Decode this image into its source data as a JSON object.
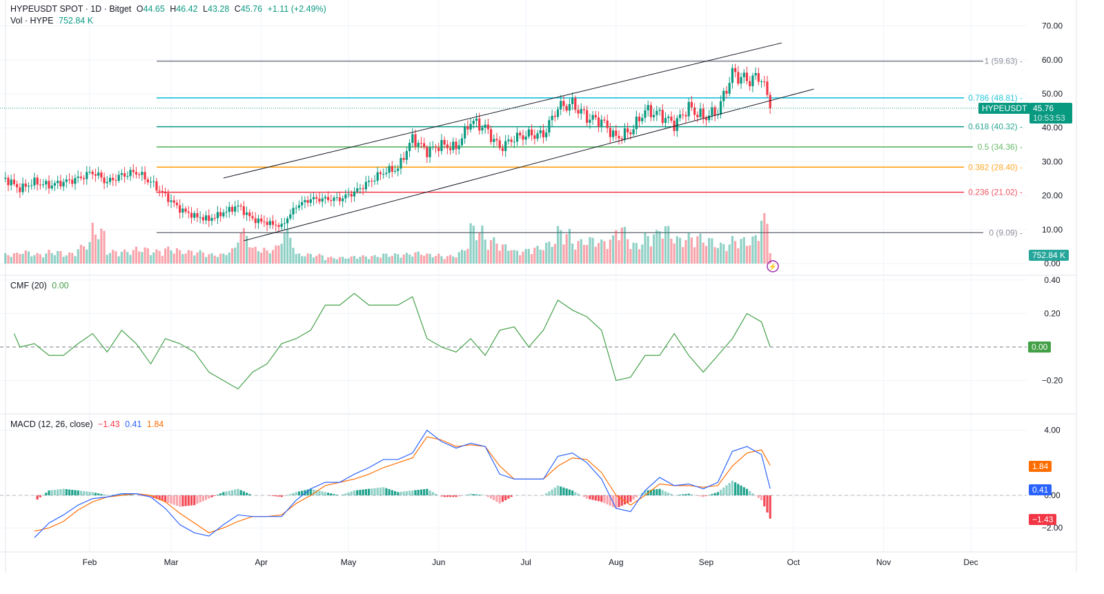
{
  "header": {
    "symbol": "HYPEUSDT SPOT · 1D · Bitget",
    "open_label": "O",
    "open": "44.65",
    "high_label": "H",
    "high": "46.42",
    "low_label": "L",
    "low": "43.28",
    "close_label": "C",
    "close": "45.76",
    "change": "+1.11 (+2.49%)",
    "vol_label": "Vol · HYPE",
    "vol": "752.84 K"
  },
  "price_tag": {
    "symbol": "HYPEUSDT",
    "price": "45.76",
    "countdown": "10:53:53"
  },
  "volume_tag": "752.84 K",
  "cmf": {
    "label": "CMF (20)",
    "value": "0.00"
  },
  "macd": {
    "label": "MACD (12, 26, close)",
    "hist": "−1.43",
    "macd": "0.41",
    "signal": "1.84"
  },
  "colors": {
    "up": "#089981",
    "down": "#f23645",
    "macd": "#2962ff",
    "signal": "#ff6d00",
    "cmf": "#43a047"
  },
  "chart_data": [
    {
      "type": "candlestick",
      "price_axis": {
        "ticks": [
          "70.00",
          "60.00",
          "50.00",
          "40.00",
          "30.00",
          "20.00",
          "10.00",
          "0.00"
        ],
        "range": [
          0,
          70
        ]
      },
      "x_ticks": [
        "Feb",
        "Mar",
        "Apr",
        "May",
        "Jun",
        "Jul",
        "Aug",
        "Sep",
        "Oct",
        "Nov",
        "Dec"
      ],
      "closes": [
        [
          "Jan 3",
          25
        ],
        [
          "Jan 8",
          22
        ],
        [
          "Jan 13",
          24
        ],
        [
          "Jan 18",
          23
        ],
        [
          "Jan 23",
          24
        ],
        [
          "Jan 28",
          25
        ],
        [
          "Feb 2",
          27
        ],
        [
          "Feb 7",
          24
        ],
        [
          "Feb 12",
          26
        ],
        [
          "Feb 17",
          27
        ],
        [
          "Feb 22",
          24
        ],
        [
          "Feb 27",
          20
        ],
        [
          "Mar 4",
          16
        ],
        [
          "Mar 9",
          14
        ],
        [
          "Mar 14",
          13
        ],
        [
          "Mar 19",
          15
        ],
        [
          "Mar 24",
          17
        ],
        [
          "Mar 29",
          13
        ],
        [
          "Apr 3",
          12
        ],
        [
          "Apr 8",
          11
        ],
        [
          "Apr 13",
          17
        ],
        [
          "Apr 18",
          19
        ],
        [
          "Apr 23",
          19
        ],
        [
          "Apr 28",
          19
        ],
        [
          "May 3",
          21
        ],
        [
          "May 8",
          24
        ],
        [
          "May 13",
          27
        ],
        [
          "May 18",
          28
        ],
        [
          "May 23",
          37
        ],
        [
          "May 28",
          33
        ],
        [
          "Jun 2",
          35
        ],
        [
          "Jun 7",
          34
        ],
        [
          "Jun 12",
          42
        ],
        [
          "Jun 17",
          40
        ],
        [
          "Jun 22",
          34
        ],
        [
          "Jun 27",
          37
        ],
        [
          "Jul 2",
          38
        ],
        [
          "Jul 7",
          38
        ],
        [
          "Jul 12",
          46
        ],
        [
          "Jul 17",
          47
        ],
        [
          "Jul 22",
          43
        ],
        [
          "Jul 27",
          42
        ],
        [
          "Aug 1",
          37
        ],
        [
          "Aug 6",
          39
        ],
        [
          "Aug 11",
          45
        ],
        [
          "Aug 16",
          44
        ],
        [
          "Aug 21",
          41
        ],
        [
          "Aug 26",
          46
        ],
        [
          "Aug 31",
          43
        ],
        [
          "Sep 5",
          45
        ],
        [
          "Sep 10",
          56
        ],
        [
          "Sep 15",
          54
        ],
        [
          "Sep 20",
          55
        ],
        [
          "Sep 23",
          45.76
        ]
      ],
      "volume_k": [
        750,
        1000,
        750,
        1000,
        750,
        1250,
        3000,
        1000,
        1000,
        1250,
        1000,
        1250,
        1000,
        1000,
        750,
        750,
        2750,
        1250,
        1000,
        2750,
        750,
        750,
        500,
        500,
        600,
        600,
        750,
        750,
        900,
        750,
        600,
        750,
        3000,
        2000,
        1500,
        1000,
        1250,
        1500,
        2750,
        1750,
        2000,
        1750,
        3000,
        1500,
        2250,
        3000,
        2000,
        2250,
        2000,
        1500,
        2000,
        1750,
        4000,
        752.84
      ],
      "fib_levels": [
        {
          "level": "1",
          "price": 59.63,
          "label": "1 (59.63)",
          "color": "#787b86"
        },
        {
          "level": "0.786",
          "price": 48.81,
          "label": "0.786 (48.81)",
          "color": "#00bcd4"
        },
        {
          "level": "0.618",
          "price": 40.32,
          "label": "0.618 (40.32)",
          "color": "#089981"
        },
        {
          "level": "0.5",
          "price": 34.36,
          "label": "0.5 (34.36)",
          "color": "#4caf50"
        },
        {
          "level": "0.382",
          "price": 28.4,
          "label": "0.382 (28.40)",
          "color": "#ff9800"
        },
        {
          "level": "0.236",
          "price": 21.02,
          "label": "0.236 (21.02)",
          "color": "#f23645"
        },
        {
          "level": "0",
          "price": 9.09,
          "label": "0 (9.09)",
          "color": "#787b86"
        }
      ],
      "trend_lines": [
        {
          "from": [
            "Mar 19",
            25.2
          ],
          "to": [
            "Sep 27",
            65.0
          ]
        },
        {
          "from": [
            "Mar 26",
            6.7
          ],
          "to": [
            "Oct 8",
            51.4
          ]
        }
      ]
    },
    {
      "type": "line",
      "name": "CMF (20)",
      "axis": {
        "ticks": [
          "0.40",
          "0.20",
          "−0.20"
        ],
        "range": [
          -0.4,
          0.4
        ]
      },
      "values": [
        0.08,
        0,
        0.02,
        -0.05,
        -0.05,
        0.02,
        0.08,
        -0.03,
        0.1,
        0.02,
        -0.1,
        0.05,
        0.02,
        -0.03,
        -0.15,
        -0.2,
        -0.25,
        -0.15,
        -0.1,
        0.02,
        0.05,
        0.1,
        0.25,
        0.25,
        0.32,
        0.25,
        0.25,
        0.25,
        0.3,
        0.05,
        0,
        -0.03,
        0.05,
        -0.05,
        0.1,
        0.12,
        0,
        0.1,
        0.28,
        0.22,
        0.18,
        0.1,
        -0.2,
        -0.18,
        -0.05,
        -0.05,
        0.08,
        -0.05,
        -0.15,
        -0.05,
        0.05,
        0.2,
        0.15,
        0
      ]
    },
    {
      "type": "line",
      "name": "MACD (12, 26, close)",
      "axis": {
        "ticks": [
          "4.00",
          "0.00",
          "−2.00"
        ]
      },
      "start_index": 2,
      "macd": [
        -2.6,
        -1.7,
        -1.2,
        -0.6,
        -0.2,
        -0.1,
        0.1,
        0.1,
        -0.1,
        -0.8,
        -1.8,
        -2.3,
        -2.5,
        -1.8,
        -1.2,
        -1.3,
        -1.3,
        -1.3,
        -0.3,
        0.4,
        0.8,
        0.8,
        1.3,
        1.7,
        2.2,
        2.2,
        2.6,
        4.0,
        3.3,
        2.9,
        3.2,
        3.0,
        1.3,
        1.0,
        1.0,
        1.0,
        2.4,
        2.6,
        2.0,
        1.0,
        -0.8,
        -1.0,
        0.3,
        1.1,
        0.6,
        0.7,
        0.4,
        0.8,
        2.7,
        3.0,
        2.5,
        0.41
      ],
      "signal": [
        -2.2,
        -2.0,
        -1.6,
        -0.9,
        -0.4,
        -0.1,
        0,
        0.1,
        0,
        -0.4,
        -1.1,
        -1.7,
        -2.3,
        -2.0,
        -1.6,
        -1.3,
        -1.3,
        -1.2,
        -0.5,
        0,
        0.6,
        0.8,
        1.0,
        1.3,
        1.7,
        2.0,
        2.3,
        3.6,
        3.4,
        3.0,
        3.1,
        3.0,
        1.8,
        1.0,
        1.0,
        1.0,
        1.8,
        2.3,
        2.2,
        1.4,
        0,
        -0.6,
        0,
        0.7,
        0.6,
        0.6,
        0.5,
        0.6,
        1.8,
        2.6,
        2.8,
        1.84
      ]
    }
  ]
}
